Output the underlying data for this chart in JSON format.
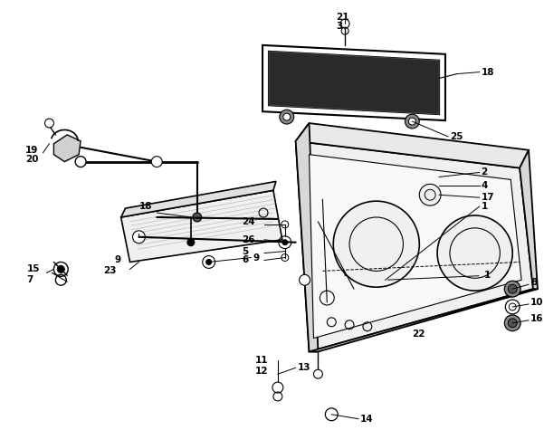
{
  "bg_color": "#ffffff",
  "line_color": "#000000",
  "fig_width": 6.01,
  "fig_height": 4.75,
  "dpi": 100,
  "font_size": 7.5
}
